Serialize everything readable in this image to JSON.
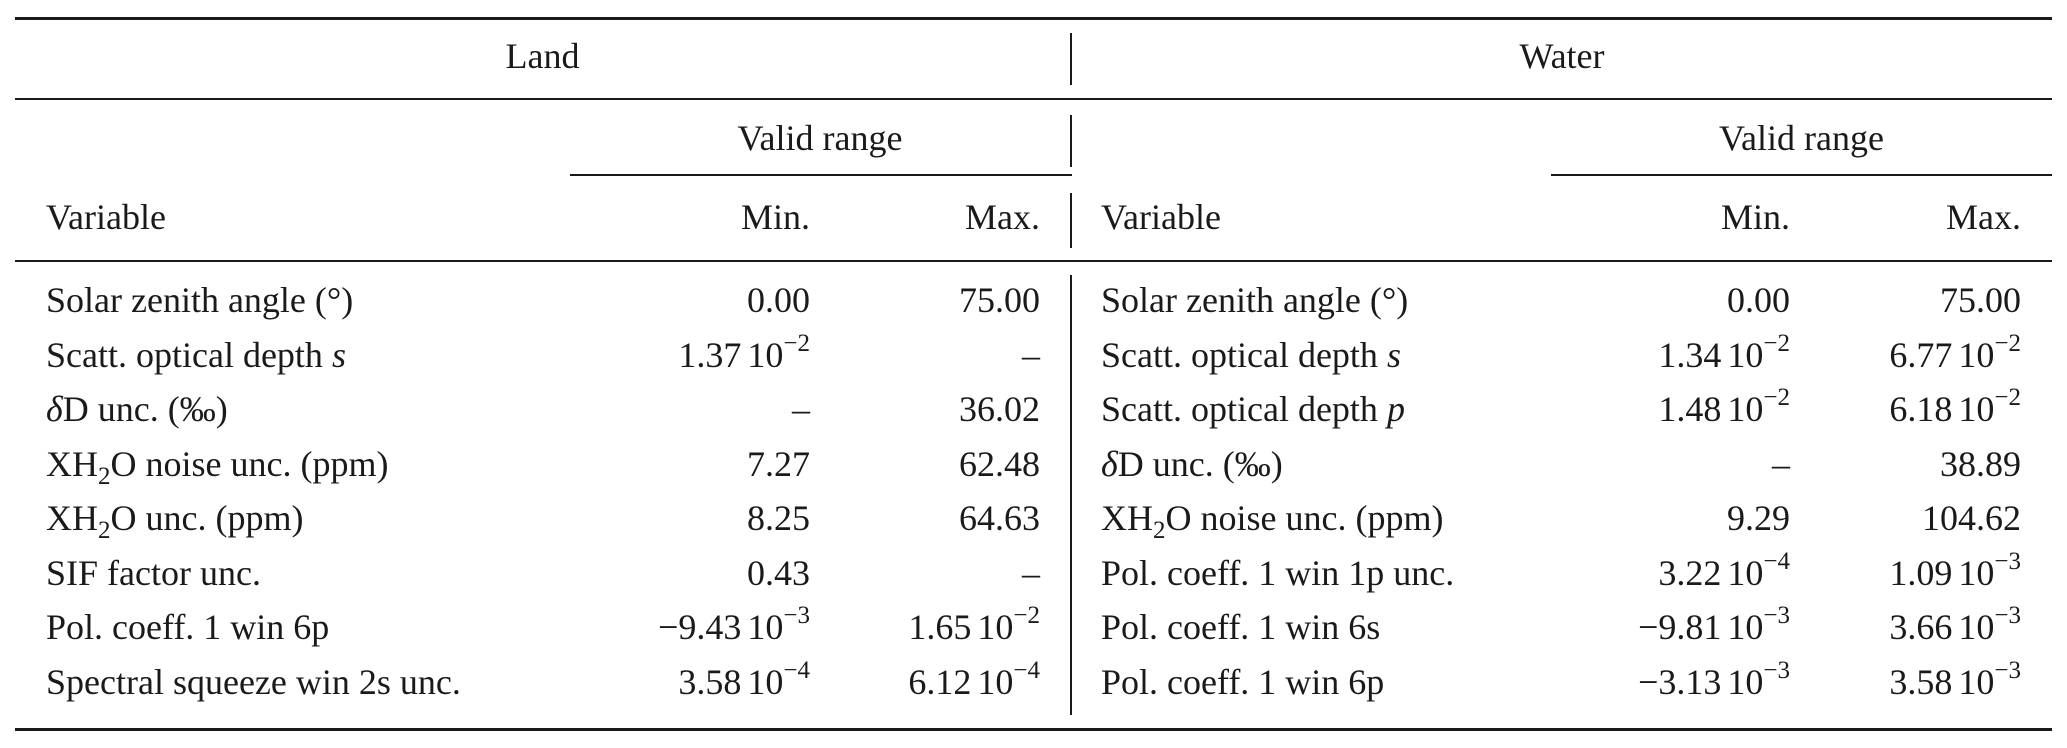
{
  "header": {
    "land": "Land",
    "water": "Water",
    "valid_range": "Valid range",
    "variable": "Variable",
    "min": "Min.",
    "max": "Max."
  },
  "land_rows": [
    {
      "variable": [
        {
          "t": "Solar zenith angle (°)"
        }
      ],
      "min": {
        "m": "0.00"
      },
      "max": {
        "m": "75.00"
      }
    },
    {
      "variable": [
        {
          "t": "Scatt. optical depth "
        },
        {
          "t": "s",
          "i": true
        }
      ],
      "min": {
        "m": "1.37",
        "e": "−2"
      },
      "max": {
        "m": "–"
      }
    },
    {
      "variable": [
        {
          "t": "δ",
          "i": true
        },
        {
          "t": "D unc. (‰)"
        }
      ],
      "min": {
        "m": "–"
      },
      "max": {
        "m": "36.02"
      }
    },
    {
      "variable": [
        {
          "t": "XH"
        },
        {
          "t": "2",
          "sub": true
        },
        {
          "t": "O noise unc. (ppm)"
        }
      ],
      "min": {
        "m": "7.27"
      },
      "max": {
        "m": "62.48"
      }
    },
    {
      "variable": [
        {
          "t": "XH"
        },
        {
          "t": "2",
          "sub": true
        },
        {
          "t": "O unc. (ppm)"
        }
      ],
      "min": {
        "m": "8.25"
      },
      "max": {
        "m": "64.63"
      }
    },
    {
      "variable": [
        {
          "t": "SIF factor unc."
        }
      ],
      "min": {
        "m": "0.43"
      },
      "max": {
        "m": "–"
      }
    },
    {
      "variable": [
        {
          "t": "Pol. coeff. 1 win 6p"
        }
      ],
      "min": {
        "m": "−9.43",
        "e": "−3"
      },
      "max": {
        "m": "1.65",
        "e": "−2"
      }
    },
    {
      "variable": [
        {
          "t": "Spectral squeeze win 2s unc."
        }
      ],
      "min": {
        "m": "3.58",
        "e": "−4"
      },
      "max": {
        "m": "6.12",
        "e": "−4"
      }
    }
  ],
  "water_rows": [
    {
      "variable": [
        {
          "t": "Solar zenith angle (°)"
        }
      ],
      "min": {
        "m": "0.00"
      },
      "max": {
        "m": "75.00"
      }
    },
    {
      "variable": [
        {
          "t": "Scatt. optical depth "
        },
        {
          "t": "s",
          "i": true
        }
      ],
      "min": {
        "m": "1.34",
        "e": "−2"
      },
      "max": {
        "m": "6.77",
        "e": "−2"
      }
    },
    {
      "variable": [
        {
          "t": "Scatt. optical depth "
        },
        {
          "t": "p",
          "i": true
        }
      ],
      "min": {
        "m": "1.48",
        "e": "−2"
      },
      "max": {
        "m": "6.18",
        "e": "−2"
      }
    },
    {
      "variable": [
        {
          "t": "δ",
          "i": true
        },
        {
          "t": "D unc. (‰)"
        }
      ],
      "min": {
        "m": "–"
      },
      "max": {
        "m": "38.89"
      }
    },
    {
      "variable": [
        {
          "t": "XH"
        },
        {
          "t": "2",
          "sub": true
        },
        {
          "t": "O noise unc. (ppm)"
        }
      ],
      "min": {
        "m": "9.29"
      },
      "max": {
        "m": "104.62"
      }
    },
    {
      "variable": [
        {
          "t": "Pol. coeff. 1 win 1p unc."
        }
      ],
      "min": {
        "m": "3.22",
        "e": "−4"
      },
      "max": {
        "m": "1.09",
        "e": "−3"
      }
    },
    {
      "variable": [
        {
          "t": "Pol. coeff. 1 win 6s"
        }
      ],
      "min": {
        "m": "−9.81",
        "e": "−3"
      },
      "max": {
        "m": "3.66",
        "e": "−3"
      }
    },
    {
      "variable": [
        {
          "t": "Pol. coeff. 1 win 6p"
        }
      ],
      "min": {
        "m": "−3.13",
        "e": "−3"
      },
      "max": {
        "m": "3.58",
        "e": "−3"
      }
    }
  ]
}
